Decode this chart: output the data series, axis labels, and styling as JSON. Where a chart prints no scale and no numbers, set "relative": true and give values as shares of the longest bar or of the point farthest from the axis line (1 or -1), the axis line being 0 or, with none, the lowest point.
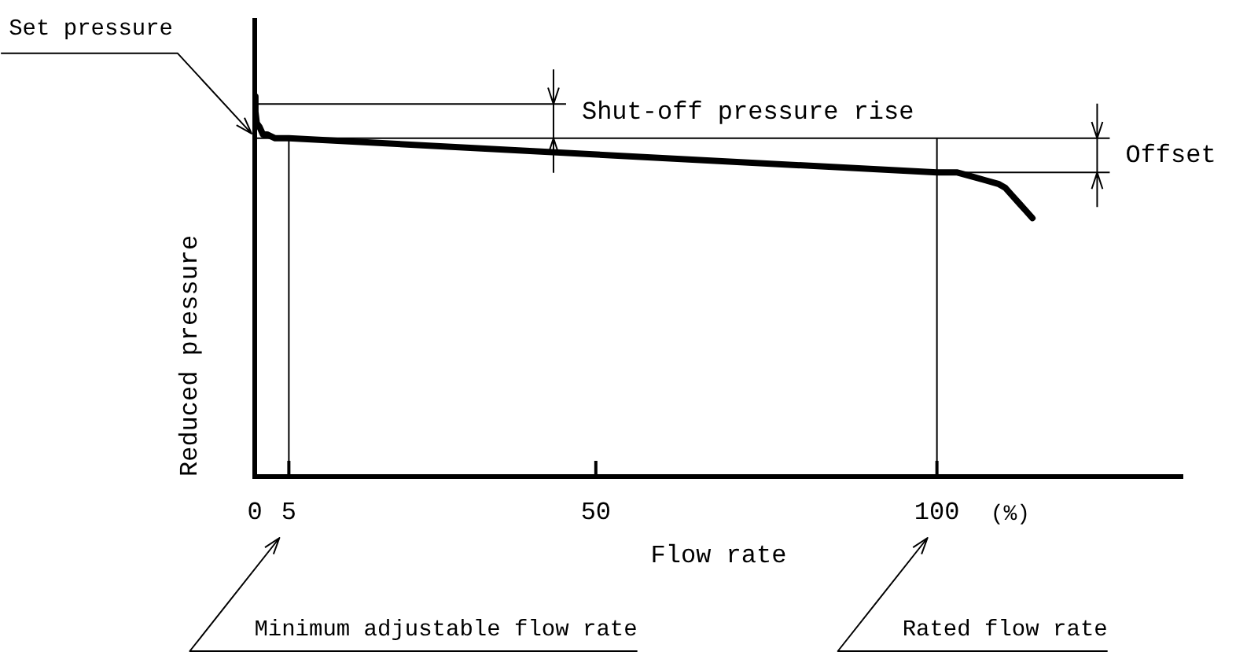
{
  "chart_data": {
    "type": "line",
    "xlabel": "Flow rate",
    "ylabel": "Reduced pressure",
    "relative": true,
    "tick_labels": "x",
    "x": [
      0,
      0.1,
      0.3,
      0.7,
      1.2,
      1.8,
      3,
      5,
      100,
      103,
      105,
      107,
      109,
      110,
      111,
      112,
      113,
      114
    ],
    "values": [
      1.0,
      0.96,
      0.93,
      0.92,
      0.9,
      0.9,
      0.89,
      0.89,
      0.8,
      0.8,
      0.79,
      0.78,
      0.77,
      0.76,
      0.74,
      0.72,
      0.7,
      0.68
    ],
    "color": "#000000",
    "xlim": [
      0,
      136
    ],
    "xticks": [
      0,
      5,
      50,
      100
    ],
    "ref_lines": [
      {
        "axis": "x",
        "value": 5
      },
      {
        "axis": "x",
        "value": 100
      },
      {
        "axis": "y",
        "value": 0.89,
        "label": "Set pressure"
      },
      {
        "axis": "y",
        "value": 0.98,
        "label": "Shut-off pressure rise"
      },
      {
        "axis": "y",
        "value": 0.8,
        "label": "Offset"
      }
    ],
    "annotations": [
      "Minimum adjustable flow rate",
      "Rated flow rate",
      "(%)"
    ]
  }
}
